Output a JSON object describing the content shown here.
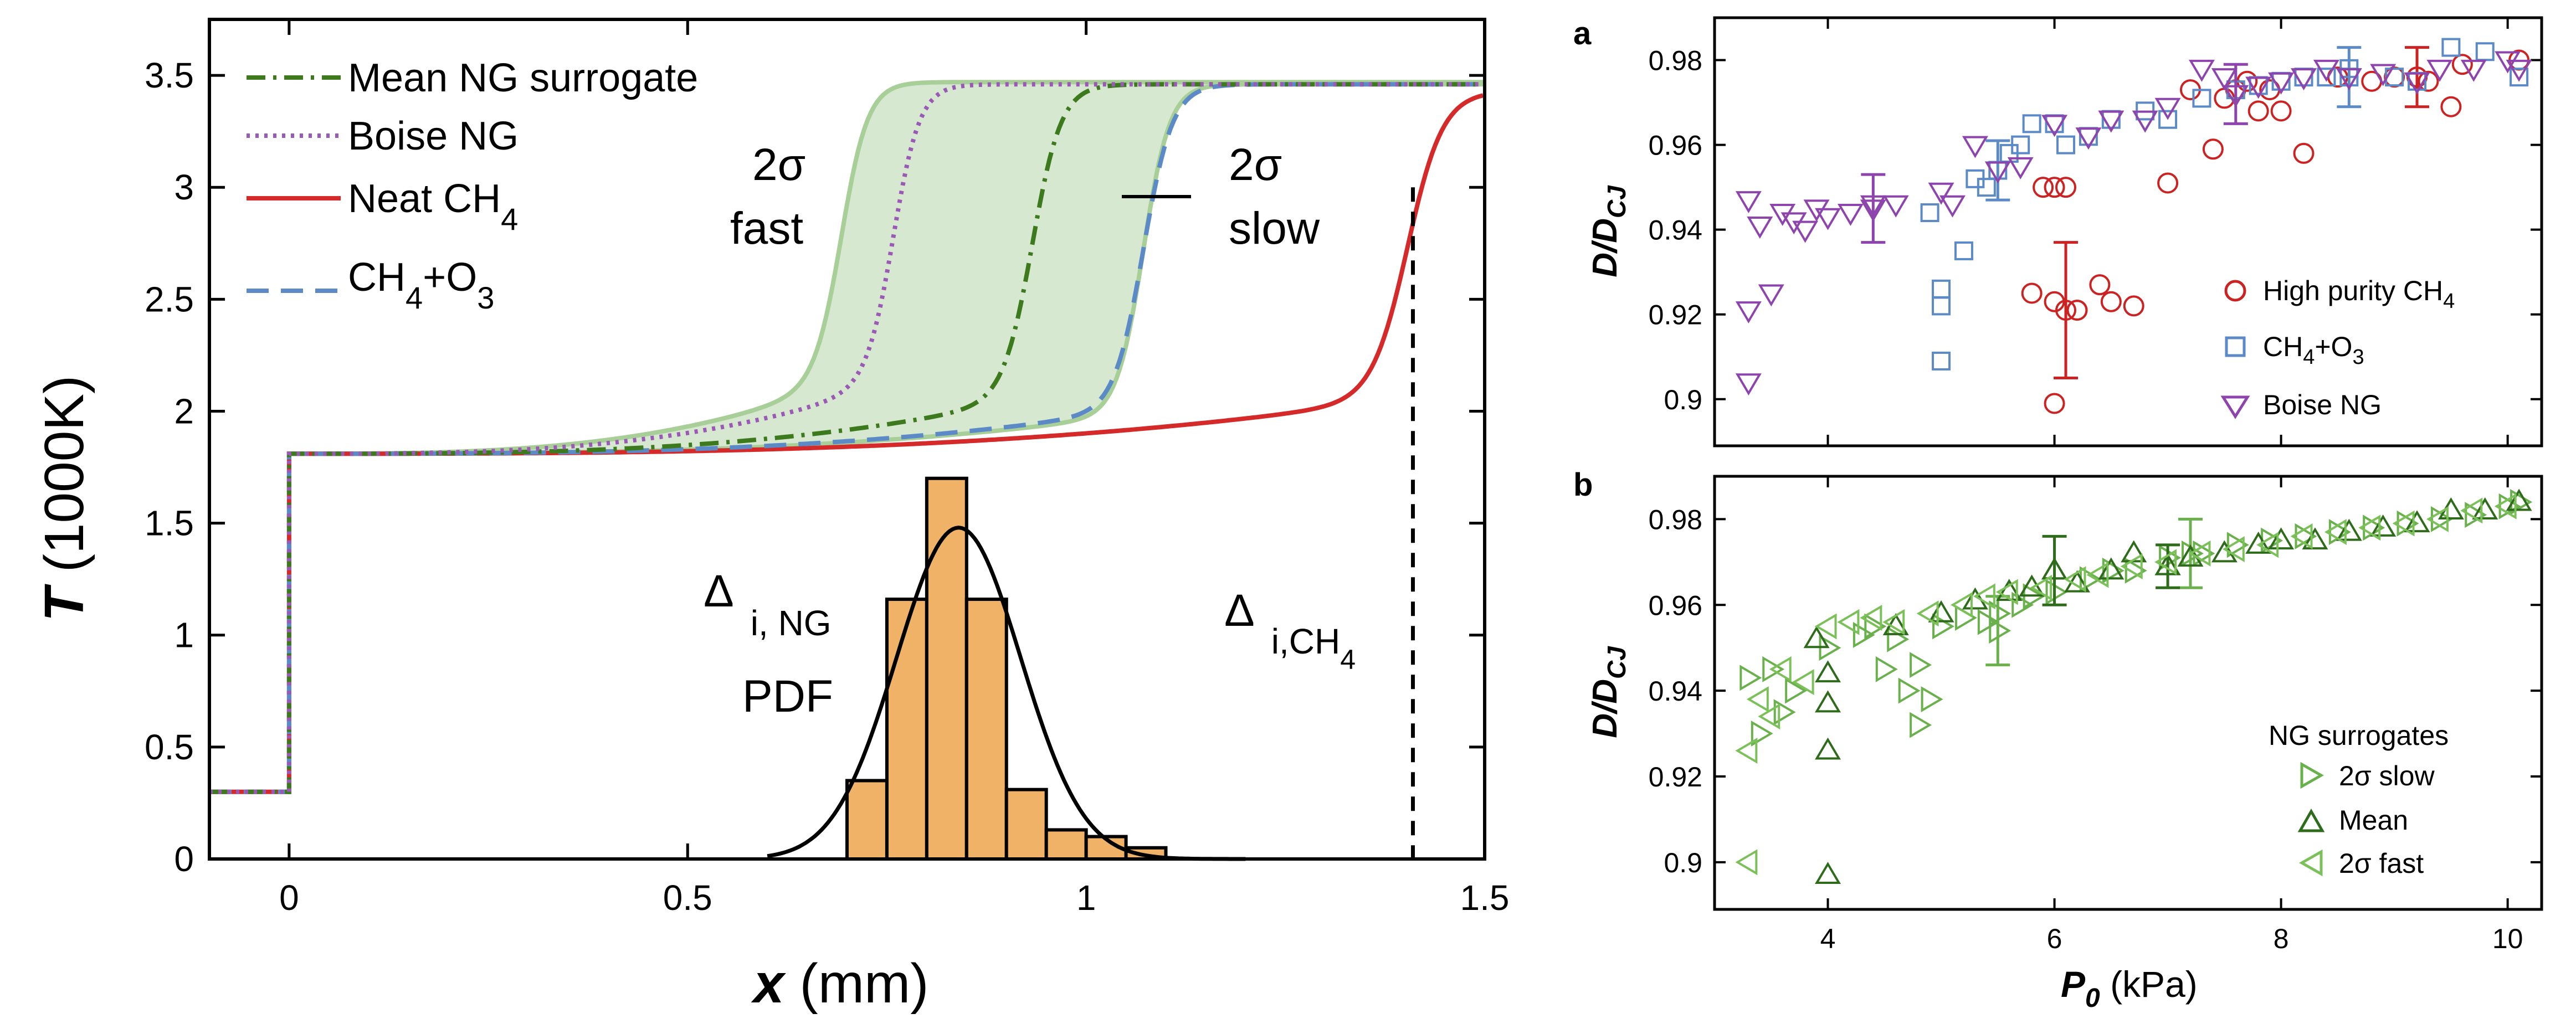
{
  "chart_data": [
    {
      "type": "line",
      "panel": "left",
      "xlabel_bold": "x",
      "xlabel_rest": " (mm)",
      "ylabel_bold": "T",
      "ylabel_rest": " (1000K)",
      "xlim": [
        -0.1,
        1.5
      ],
      "ylim": [
        0,
        3.75
      ],
      "xticks": [
        0,
        0.5,
        1,
        1.5
      ],
      "xtick_labels": [
        "0",
        "0.5",
        "1",
        "1.5"
      ],
      "yticks": [
        0,
        0.5,
        1,
        1.5,
        2,
        2.5,
        3,
        3.5
      ],
      "ytick_labels": [
        "0",
        "0.5",
        "1",
        "1.5",
        "2",
        "2.5",
        "3",
        "3.5"
      ],
      "legend_position": "top-left",
      "legend": {
        "mean": "Mean NG surrogate",
        "boise": "Boise NG",
        "neat": "Neat CH",
        "neat_sub": "4",
        "ozone_a": "CH",
        "ozone_sub1": "4",
        "ozone_b": "+O",
        "ozone_sub2": "3"
      },
      "colors": {
        "mean": "#3d7a1e",
        "boise": "#9b59b6",
        "neat": "#d42a2a",
        "ozone": "#5b8ac6",
        "band_fill": "#d6e8d0",
        "band_edge": "#a8cf98",
        "hist": "#f0b266"
      },
      "series": [
        {
          "name": "Mean NG surrogate",
          "style": "dash-dot",
          "x_ignition": 0.93,
          "T_plateau": 3.46
        },
        {
          "name": "Boise NG",
          "style": "dotted",
          "x_ignition": 0.755,
          "T_plateau": 3.46
        },
        {
          "name": "Neat CH4",
          "style": "solid",
          "x_ignition": 1.4,
          "T_plateau": 3.43
        },
        {
          "name": "CH4+O3",
          "style": "dashed",
          "x_ignition": 1.07,
          "T_plateau": 3.46
        }
      ],
      "initial_T": 0.3,
      "post_shock_T": 1.81,
      "band": {
        "x_fast": 0.73,
        "x_slow": 1.05
      },
      "annotations": {
        "fast_a": "2σ",
        "fast_b": "fast",
        "slow_a": "2σ",
        "slow_b": "slow",
        "delta_ng": "Δ",
        "delta_ng_sub": "i, NG",
        "pdf": "PDF",
        "delta_ch4": "Δ",
        "delta_ch4_sub": "i,CH",
        "delta_ch4_sub2": "4"
      },
      "delta_ch4_x": 1.41,
      "pdf_fit": {
        "mean": 0.84,
        "sd": 0.078,
        "peak": 1.48,
        "xrange": [
          0.6,
          1.2
        ]
      },
      "histogram": {
        "bins": [
          0.7,
          0.75,
          0.8,
          0.85,
          0.9,
          0.95,
          1.0,
          1.05,
          1.1
        ],
        "heights": [
          0.35,
          1.16,
          1.7,
          1.16,
          0.31,
          0.13,
          0.1,
          0.05
        ]
      }
    },
    {
      "type": "scatter",
      "panel": "a",
      "panel_label": "a",
      "ylabel_main": "D/D",
      "ylabel_sub": "CJ",
      "xlim": [
        3,
        10.3
      ],
      "ylim": [
        0.889,
        0.99
      ],
      "xticks": [
        4,
        6,
        8,
        10
      ],
      "yticks": [
        0.9,
        0.92,
        0.94,
        0.96,
        0.98
      ],
      "ytick_labels": [
        "0.9",
        "0.92",
        "0.94",
        "0.96",
        "0.98"
      ],
      "legend_position": "bottom-right",
      "legend": {
        "hp_a": "High purity CH",
        "hp_sub": "4",
        "oz_a": "CH",
        "oz_sub1": "4",
        "oz_b": "+O",
        "oz_sub2": "3",
        "boise": "Boise NG"
      },
      "colors": {
        "hp": "#cc2222",
        "oz": "#5b8ac6",
        "boise": "#8e44ad"
      },
      "series": [
        {
          "name": "High purity CH4",
          "marker": "circle",
          "points": [
            [
              5.8,
              0.925
            ],
            [
              6.0,
              0.923
            ],
            [
              6.0,
              0.899
            ],
            [
              6.0,
              0.95
            ],
            [
              5.9,
              0.95
            ],
            [
              6.1,
              0.95
            ],
            [
              6.2,
              0.921
            ],
            [
              6.2,
              0.921
            ],
            [
              6.4,
              0.927
            ],
            [
              6.5,
              0.923
            ],
            [
              6.7,
              0.922
            ],
            [
              7.0,
              0.951
            ],
            [
              7.2,
              0.973
            ],
            [
              7.4,
              0.959
            ],
            [
              7.5,
              0.971
            ],
            [
              7.6,
              0.973
            ],
            [
              7.7,
              0.975
            ],
            [
              7.8,
              0.968
            ],
            [
              7.9,
              0.973
            ],
            [
              8.0,
              0.968
            ],
            [
              8.2,
              0.958
            ],
            [
              8.5,
              0.976
            ],
            [
              8.8,
              0.975
            ],
            [
              9.0,
              0.976
            ],
            [
              9.2,
              0.976
            ],
            [
              9.3,
              0.975
            ],
            [
              9.5,
              0.969
            ],
            [
              9.6,
              0.979
            ],
            [
              10.1,
              0.98
            ]
          ],
          "errorbars": [
            [
              6.1,
              0.921,
              0.016
            ],
            [
              9.2,
              0.976,
              0.007
            ]
          ]
        },
        {
          "name": "CH4+O3",
          "marker": "square",
          "points": [
            [
              4.9,
              0.944
            ],
            [
              5.0,
              0.909
            ],
            [
              5.0,
              0.922
            ],
            [
              5.0,
              0.926
            ],
            [
              5.2,
              0.935
            ],
            [
              5.3,
              0.952
            ],
            [
              5.4,
              0.95
            ],
            [
              5.6,
              0.958
            ],
            [
              5.7,
              0.96
            ],
            [
              5.8,
              0.965
            ],
            [
              6.0,
              0.965
            ],
            [
              6.1,
              0.96
            ],
            [
              6.3,
              0.962
            ],
            [
              6.5,
              0.966
            ],
            [
              6.8,
              0.968
            ],
            [
              7.0,
              0.966
            ],
            [
              7.3,
              0.971
            ],
            [
              7.6,
              0.973
            ],
            [
              7.8,
              0.974
            ],
            [
              8.0,
              0.975
            ],
            [
              8.2,
              0.976
            ],
            [
              8.4,
              0.976
            ],
            [
              8.6,
              0.978
            ],
            [
              9.0,
              0.976
            ],
            [
              9.2,
              0.975
            ],
            [
              9.5,
              0.983
            ],
            [
              9.8,
              0.982
            ],
            [
              10.1,
              0.976
            ]
          ],
          "errorbars": [
            [
              5.5,
              0.954,
              0.007
            ],
            [
              8.6,
              0.976,
              0.007
            ]
          ]
        },
        {
          "name": "Boise NG",
          "marker": "triangle-down",
          "points": [
            [
              3.3,
              0.947
            ],
            [
              3.3,
              0.904
            ],
            [
              3.3,
              0.921
            ],
            [
              3.4,
              0.941
            ],
            [
              3.5,
              0.925
            ],
            [
              3.6,
              0.944
            ],
            [
              3.7,
              0.942
            ],
            [
              3.8,
              0.94
            ],
            [
              3.9,
              0.945
            ],
            [
              4.0,
              0.943
            ],
            [
              4.2,
              0.944
            ],
            [
              4.4,
              0.946
            ],
            [
              4.6,
              0.946
            ],
            [
              5.0,
              0.949
            ],
            [
              5.1,
              0.946
            ],
            [
              5.3,
              0.96
            ],
            [
              5.5,
              0.954
            ],
            [
              5.7,
              0.955
            ],
            [
              6.0,
              0.965
            ],
            [
              6.3,
              0.962
            ],
            [
              6.5,
              0.966
            ],
            [
              6.8,
              0.966
            ],
            [
              7.0,
              0.969
            ],
            [
              7.3,
              0.978
            ],
            [
              7.5,
              0.976
            ],
            [
              7.8,
              0.974
            ],
            [
              8.0,
              0.975
            ],
            [
              8.2,
              0.976
            ],
            [
              8.4,
              0.978
            ],
            [
              8.6,
              0.976
            ],
            [
              8.9,
              0.977
            ],
            [
              9.2,
              0.975
            ],
            [
              9.4,
              0.978
            ],
            [
              9.7,
              0.978
            ],
            [
              10.0,
              0.98
            ],
            [
              10.1,
              0.978
            ]
          ],
          "errorbars": [
            [
              4.4,
              0.945,
              0.008
            ],
            [
              7.6,
              0.972,
              0.007
            ]
          ]
        }
      ]
    },
    {
      "type": "scatter",
      "panel": "b",
      "panel_label": "b",
      "ylabel_main": "D/D",
      "ylabel_sub": "CJ",
      "xlabel_main": "P",
      "xlabel_sub": "0",
      "xlabel_rest": " (kPa)",
      "xlim": [
        3,
        10.3
      ],
      "ylim": [
        0.889,
        0.99
      ],
      "xticks": [
        4,
        6,
        8,
        10
      ],
      "xtick_labels": [
        "4",
        "6",
        "8",
        "10"
      ],
      "yticks": [
        0.9,
        0.92,
        0.94,
        0.96,
        0.98
      ],
      "ytick_labels": [
        "0.9",
        "0.92",
        "0.94",
        "0.96",
        "0.98"
      ],
      "legend_position": "bottom-right",
      "legend": {
        "title": "NG surrogates",
        "slow": "2σ slow",
        "mean": "Mean",
        "fast": "2σ fast"
      },
      "colors": {
        "slow": "#6ab04c",
        "mean": "#2e6b1a",
        "fast": "#7cc05a"
      },
      "series": [
        {
          "name": "2σ slow",
          "marker": "triangle-right",
          "points": [
            [
              3.3,
              0.943
            ],
            [
              3.4,
              0.93
            ],
            [
              3.5,
              0.945
            ],
            [
              3.6,
              0.935
            ],
            [
              3.7,
              0.94
            ],
            [
              4.0,
              0.95
            ],
            [
              4.3,
              0.953
            ],
            [
              4.4,
              0.955
            ],
            [
              4.5,
              0.945
            ],
            [
              4.6,
              0.952
            ],
            [
              4.7,
              0.94
            ],
            [
              4.8,
              0.946
            ],
            [
              4.8,
              0.932
            ],
            [
              4.9,
              0.938
            ],
            [
              5.0,
              0.955
            ],
            [
              5.2,
              0.957
            ],
            [
              5.4,
              0.956
            ],
            [
              5.5,
              0.958
            ],
            [
              5.7,
              0.96
            ],
            [
              5.8,
              0.962
            ],
            [
              6.0,
              0.963
            ],
            [
              6.3,
              0.966
            ],
            [
              6.5,
              0.968
            ],
            [
              6.7,
              0.968
            ],
            [
              7.0,
              0.971
            ],
            [
              7.3,
              0.972
            ],
            [
              7.6,
              0.974
            ],
            [
              7.9,
              0.975
            ],
            [
              8.2,
              0.976
            ],
            [
              8.5,
              0.977
            ],
            [
              8.8,
              0.978
            ],
            [
              9.1,
              0.979
            ],
            [
              9.4,
              0.98
            ],
            [
              9.7,
              0.981
            ],
            [
              10.0,
              0.983
            ],
            [
              10.1,
              0.984
            ]
          ],
          "errorbars": [
            [
              5.5,
              0.954,
              0.008
            ],
            [
              7.2,
              0.972,
              0.008
            ]
          ]
        },
        {
          "name": "Mean",
          "marker": "triangle-up",
          "points": [
            [
              3.9,
              0.952
            ],
            [
              4.0,
              0.944
            ],
            [
              4.0,
              0.937
            ],
            [
              4.0,
              0.926
            ],
            [
              4.0,
              0.897
            ],
            [
              4.6,
              0.955
            ],
            [
              5.0,
              0.958
            ],
            [
              5.3,
              0.961
            ],
            [
              5.6,
              0.963
            ],
            [
              5.8,
              0.964
            ],
            [
              6.0,
              0.968
            ],
            [
              6.2,
              0.965
            ],
            [
              6.5,
              0.968
            ],
            [
              6.7,
              0.972
            ],
            [
              7.0,
              0.969
            ],
            [
              7.2,
              0.971
            ],
            [
              7.5,
              0.972
            ],
            [
              7.8,
              0.974
            ],
            [
              8.0,
              0.975
            ],
            [
              8.3,
              0.975
            ],
            [
              8.6,
              0.977
            ],
            [
              8.9,
              0.978
            ],
            [
              9.2,
              0.979
            ],
            [
              9.5,
              0.982
            ],
            [
              9.8,
              0.982
            ],
            [
              10.1,
              0.984
            ]
          ],
          "errorbars": [
            [
              6.0,
              0.968,
              0.008
            ],
            [
              7.0,
              0.969,
              0.005
            ]
          ]
        },
        {
          "name": "2σ fast",
          "marker": "triangle-left",
          "points": [
            [
              3.3,
              0.9
            ],
            [
              3.3,
              0.926
            ],
            [
              3.4,
              0.938
            ],
            [
              3.5,
              0.934
            ],
            [
              3.6,
              0.945
            ],
            [
              3.8,
              0.942
            ],
            [
              4.0,
              0.955
            ],
            [
              4.2,
              0.956
            ],
            [
              4.4,
              0.957
            ],
            [
              4.6,
              0.956
            ],
            [
              4.9,
              0.958
            ],
            [
              5.2,
              0.96
            ],
            [
              5.4,
              0.962
            ],
            [
              5.6,
              0.963
            ],
            [
              5.9,
              0.964
            ],
            [
              6.2,
              0.966
            ],
            [
              6.4,
              0.967
            ],
            [
              6.7,
              0.969
            ],
            [
              7.0,
              0.97
            ],
            [
              7.3,
              0.972
            ],
            [
              7.6,
              0.973
            ],
            [
              7.9,
              0.974
            ],
            [
              8.2,
              0.976
            ],
            [
              8.5,
              0.977
            ],
            [
              8.8,
              0.978
            ],
            [
              9.1,
              0.979
            ],
            [
              9.4,
              0.98
            ],
            [
              9.7,
              0.982
            ],
            [
              10.0,
              0.983
            ]
          ],
          "errorbars": []
        }
      ]
    }
  ]
}
